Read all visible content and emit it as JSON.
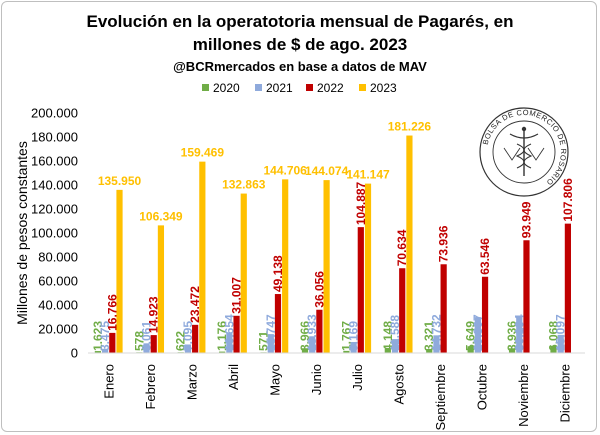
{
  "chart_data": {
    "type": "bar",
    "title": "Evolución en la operatotoria mensual de Pagarés, en millones de $ de ago. 2023",
    "title_lines": [
      "Evolución en la operatotoria mensual de Pagarés, en",
      "millones de $ de ago. 2023"
    ],
    "subtitle": "@BCRmercados en base a datos de MAV",
    "ylabel": "Millones de pesos constantes",
    "xlabel": "",
    "ylim": [
      0,
      200000
    ],
    "yticks": [
      "0",
      "20.000",
      "40.000",
      "60.000",
      "80.000",
      "100.000",
      "120.000",
      "140.000",
      "160.000",
      "180.000",
      "200.000"
    ],
    "grid": false,
    "legend_position": "top",
    "categories": [
      "Enero",
      "Febrero",
      "Marzo",
      "Abril",
      "Mayo",
      "Junio",
      "Julio",
      "Agosto",
      "Septiembre",
      "Octubre",
      "Noviembre",
      "Diciembre"
    ],
    "series": [
      {
        "name": "2020",
        "color": "#70ad47",
        "values": [
          1623,
          578,
          622,
          1176,
          571,
          3966,
          1767,
          4148,
          3321,
          5649,
          3936,
          6068
        ],
        "labels": [
          "1.623",
          "578",
          "622",
          "1.176",
          "571",
          "3.966",
          "1.767",
          "4.148",
          "3.321",
          "5.649",
          "3.936",
          "6.068"
        ]
      },
      {
        "name": "2021",
        "color": "#8faadc",
        "values": [
          3475,
          8061,
          7095,
          16654,
          15747,
          13933,
          9169,
          11588,
          14732,
          29897,
          30194,
          15097
        ],
        "labels": [
          "3.475",
          "8.061",
          "7.095",
          "16.654",
          "15.747",
          "13.933",
          "9.169",
          "11.588",
          "14.732",
          "29.897",
          "30.194",
          "15.097"
        ]
      },
      {
        "name": "2022",
        "color": "#c00000",
        "values": [
          16766,
          14923,
          23472,
          31007,
          49138,
          36056,
          104887,
          70634,
          73936,
          63546,
          93949,
          107806
        ],
        "labels": [
          "16.766",
          "14.923",
          "23.472",
          "31.007",
          "49.138",
          "36.056",
          "104.887",
          "70.634",
          "73.936",
          "63.546",
          "93.949",
          "107.806"
        ]
      },
      {
        "name": "2023",
        "color": "#ffc000",
        "values": [
          135950,
          106349,
          159469,
          132863,
          144706,
          144074,
          141147,
          181226,
          null,
          null,
          null,
          null
        ],
        "labels": [
          "135.950",
          "106.349",
          "159.469",
          "132.863",
          "144.706",
          "144.074",
          "141.147",
          "181.226",
          "",
          "",
          "",
          ""
        ]
      }
    ]
  },
  "logo": {
    "name": "Bolsa de Comercio de Rosario seal",
    "text": "BOLSA DE COMERCIO DE ROSARIO"
  }
}
